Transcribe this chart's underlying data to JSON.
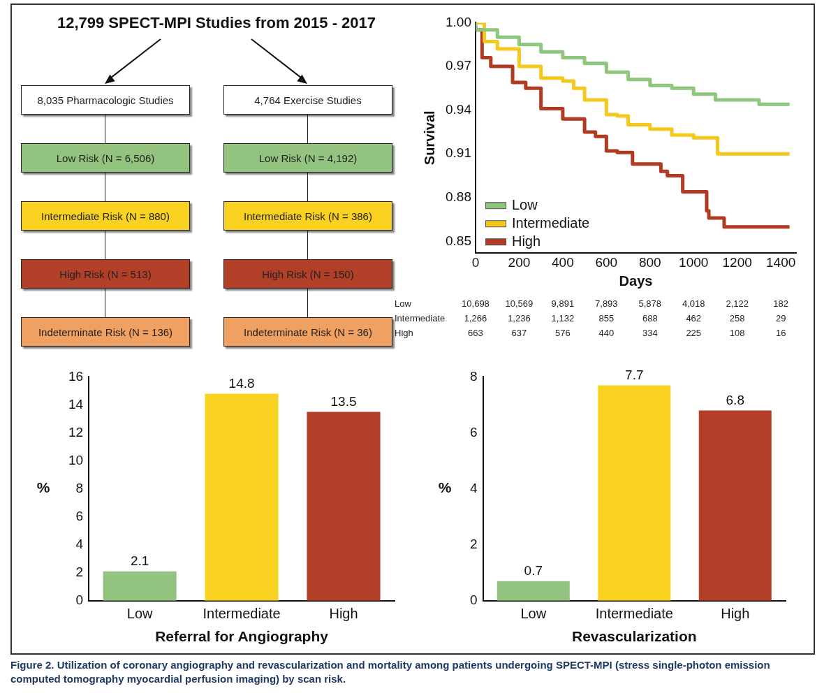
{
  "chart_data": [
    {
      "type": "other",
      "title": "12,799 SPECT-MPI Studies from 2015 - 2017",
      "annotations": [
        "8,035 Pharmacologic Studies",
        "Low Risk (N = 6,506)",
        "Intermediate Risk (N = 880)",
        "High Risk (N = 513)",
        "Indeterminate Risk (N = 136)",
        "4,764 Exercise Studies",
        "Low Risk (N = 4,192)",
        "Intermediate Risk (N = 386)",
        "High Risk (N = 150)",
        "Indeterminate Risk (N = 36)"
      ],
      "colors": [
        "#ffffff",
        "#92c47f",
        "#f9d11f",
        "#b23f28",
        "#f0a060"
      ]
    },
    {
      "type": "step",
      "xlabel": "Days",
      "ylabel": "Survival",
      "xlim": [
        0,
        1470
      ],
      "xticks": [
        0,
        200,
        400,
        600,
        800,
        1000,
        1200,
        1400
      ],
      "ylim": [
        0.842,
        1.0
      ],
      "yticks": [
        {
          "value": 0.85,
          "label": "0.85"
        },
        {
          "value": 0.88,
          "label": "0.88"
        },
        {
          "value": 0.91,
          "label": "0.91"
        },
        {
          "value": 0.94,
          "label": "0.94"
        },
        {
          "value": 0.97,
          "label": "0.97"
        },
        {
          "value": 1.0,
          "label": "1.00"
        }
      ],
      "legend": "bottom left",
      "grid": false,
      "series": [
        {
          "name": "Low",
          "color": "#8fc67e",
          "x": [
            0,
            100,
            200,
            300,
            400,
            500,
            600,
            700,
            800,
            900,
            1000,
            1100,
            1200,
            1300,
            1330,
            1440
          ],
          "values": [
            1.0,
            0.995,
            0.99,
            0.985,
            0.98,
            0.976,
            0.972,
            0.966,
            0.961,
            0.957,
            0.955,
            0.951,
            0.947,
            0.947,
            0.944,
            0.944
          ]
        },
        {
          "name": "Intermediate",
          "color": "#f5c81e",
          "x": [
            0,
            40,
            100,
            200,
            300,
            400,
            450,
            500,
            550,
            600,
            650,
            700,
            800,
            900,
            950,
            1000,
            1050,
            1110,
            1120,
            1440
          ],
          "values": [
            1.0,
            1.0,
            0.987,
            0.982,
            0.97,
            0.962,
            0.96,
            0.955,
            0.947,
            0.947,
            0.937,
            0.936,
            0.93,
            0.927,
            0.923,
            0.923,
            0.921,
            0.921,
            0.91,
            0.91
          ]
        },
        {
          "name": "High",
          "color": "#b03a22",
          "x": [
            0,
            30,
            70,
            100,
            170,
            230,
            300,
            400,
            500,
            550,
            600,
            650,
            720,
            750,
            850,
            880,
            950,
            1000,
            1060,
            1070,
            1140,
            1170,
            1440
          ],
          "values": [
            0.998,
            0.995,
            0.976,
            0.97,
            0.97,
            0.959,
            0.955,
            0.941,
            0.934,
            0.925,
            0.922,
            0.912,
            0.911,
            0.903,
            0.903,
            0.898,
            0.895,
            0.884,
            0.884,
            0.871,
            0.866,
            0.86,
            0.86
          ]
        }
      ],
      "annotations": [
        "Low",
        "10,698",
        "10,569",
        "9,891",
        "7,893",
        "5,878",
        "4,018",
        "2,122",
        "182",
        "Intermediate",
        "1,266",
        "1,236",
        "1,132",
        "855",
        "688",
        "462",
        "258",
        "29",
        "High",
        "663",
        "637",
        "576",
        "440",
        "334",
        "225",
        "108",
        "16"
      ]
    },
    {
      "type": "bar",
      "xlabel": "Referral for Angiography",
      "ylabel": "%",
      "categories": [
        "Low",
        "Intermediate",
        "High"
      ],
      "values": [
        2.1,
        14.8,
        13.5
      ],
      "colors": [
        "#92c47f",
        "#f9d11f",
        "#b23f28"
      ],
      "ylim": [
        0,
        16
      ],
      "yticks": [
        0,
        2,
        4,
        6,
        8,
        10,
        12,
        14,
        16
      ],
      "data_labels": true,
      "grid": false
    },
    {
      "type": "bar",
      "xlabel": "Revascularization",
      "ylabel": "%",
      "categories": [
        "Low",
        "Intermediate",
        "High"
      ],
      "values": [
        0.7,
        7.7,
        6.8
      ],
      "colors": [
        "#92c47f",
        "#f9d11f",
        "#b23f28"
      ],
      "ylim": [
        0,
        8
      ],
      "yticks": [
        0,
        2,
        4,
        6,
        8
      ],
      "data_labels": true,
      "grid": false,
      "annotations": [
        "Figure 2. Utilization of coronary angiography and revascularization and mortality among patients undergoing SPECT-MPI (stress single-photon emission computed tomography myocardial perfusion imaging) by scan risk."
      ]
    }
  ]
}
